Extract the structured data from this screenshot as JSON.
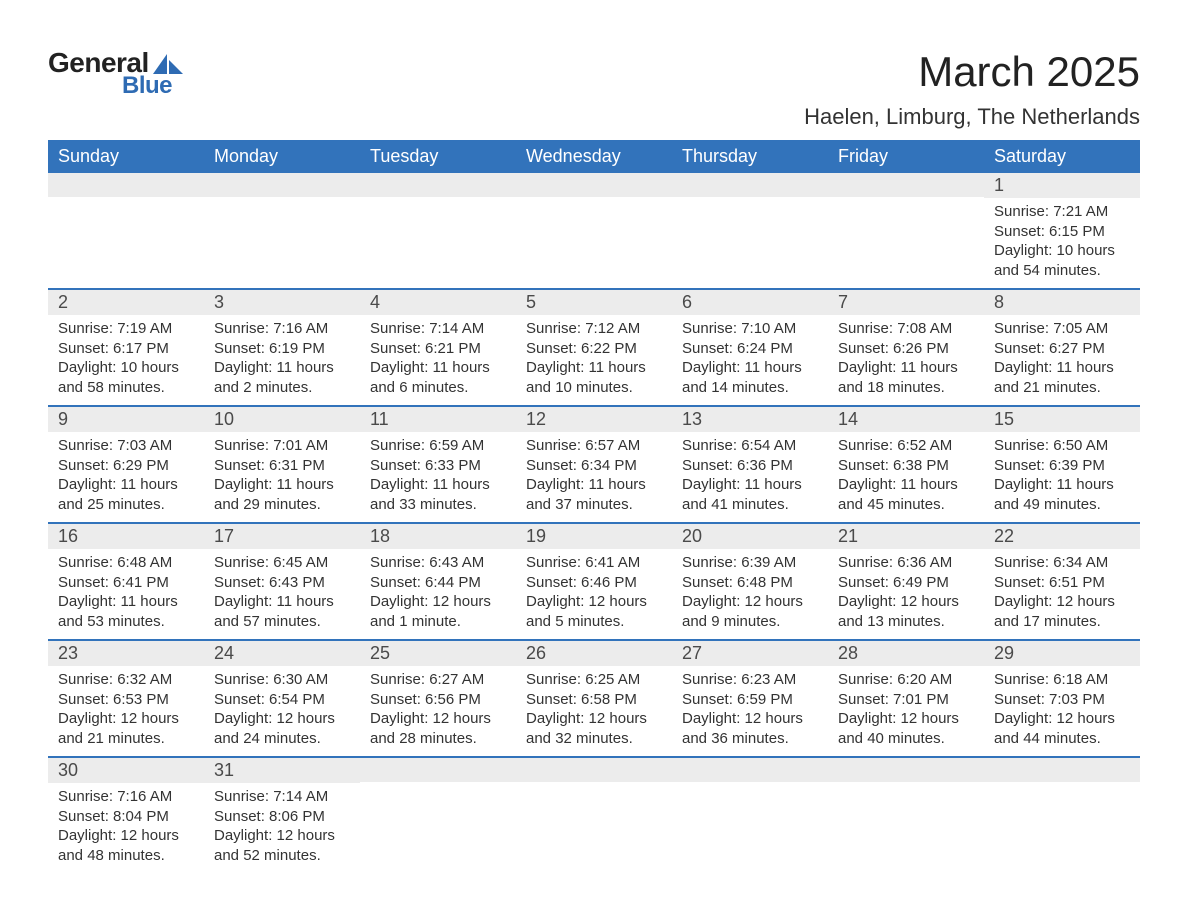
{
  "logo": {
    "text_general": "General",
    "text_blue": "Blue",
    "icon_color": "#2e6bb3"
  },
  "title": {
    "month": "March 2025",
    "location": "Haelen, Limburg, The Netherlands",
    "month_fontsize": 42,
    "location_fontsize": 22
  },
  "colors": {
    "header_bg": "#3273bb",
    "header_text": "#ffffff",
    "daynum_bg": "#ececec",
    "daynum_text": "#4a4a4a",
    "body_text": "#333333",
    "row_border": "#3273bb",
    "background": "#ffffff"
  },
  "typography": {
    "body_fontsize": 15,
    "header_fontsize": 18,
    "daynum_fontsize": 18,
    "font_family": "Arial"
  },
  "calendar": {
    "type": "table",
    "columns": [
      "Sunday",
      "Monday",
      "Tuesday",
      "Wednesday",
      "Thursday",
      "Friday",
      "Saturday"
    ],
    "weeks": [
      [
        null,
        null,
        null,
        null,
        null,
        null,
        {
          "n": "1",
          "sunrise": "Sunrise: 7:21 AM",
          "sunset": "Sunset: 6:15 PM",
          "daylight": "Daylight: 10 hours and 54 minutes."
        }
      ],
      [
        {
          "n": "2",
          "sunrise": "Sunrise: 7:19 AM",
          "sunset": "Sunset: 6:17 PM",
          "daylight": "Daylight: 10 hours and 58 minutes."
        },
        {
          "n": "3",
          "sunrise": "Sunrise: 7:16 AM",
          "sunset": "Sunset: 6:19 PM",
          "daylight": "Daylight: 11 hours and 2 minutes."
        },
        {
          "n": "4",
          "sunrise": "Sunrise: 7:14 AM",
          "sunset": "Sunset: 6:21 PM",
          "daylight": "Daylight: 11 hours and 6 minutes."
        },
        {
          "n": "5",
          "sunrise": "Sunrise: 7:12 AM",
          "sunset": "Sunset: 6:22 PM",
          "daylight": "Daylight: 11 hours and 10 minutes."
        },
        {
          "n": "6",
          "sunrise": "Sunrise: 7:10 AM",
          "sunset": "Sunset: 6:24 PM",
          "daylight": "Daylight: 11 hours and 14 minutes."
        },
        {
          "n": "7",
          "sunrise": "Sunrise: 7:08 AM",
          "sunset": "Sunset: 6:26 PM",
          "daylight": "Daylight: 11 hours and 18 minutes."
        },
        {
          "n": "8",
          "sunrise": "Sunrise: 7:05 AM",
          "sunset": "Sunset: 6:27 PM",
          "daylight": "Daylight: 11 hours and 21 minutes."
        }
      ],
      [
        {
          "n": "9",
          "sunrise": "Sunrise: 7:03 AM",
          "sunset": "Sunset: 6:29 PM",
          "daylight": "Daylight: 11 hours and 25 minutes."
        },
        {
          "n": "10",
          "sunrise": "Sunrise: 7:01 AM",
          "sunset": "Sunset: 6:31 PM",
          "daylight": "Daylight: 11 hours and 29 minutes."
        },
        {
          "n": "11",
          "sunrise": "Sunrise: 6:59 AM",
          "sunset": "Sunset: 6:33 PM",
          "daylight": "Daylight: 11 hours and 33 minutes."
        },
        {
          "n": "12",
          "sunrise": "Sunrise: 6:57 AM",
          "sunset": "Sunset: 6:34 PM",
          "daylight": "Daylight: 11 hours and 37 minutes."
        },
        {
          "n": "13",
          "sunrise": "Sunrise: 6:54 AM",
          "sunset": "Sunset: 6:36 PM",
          "daylight": "Daylight: 11 hours and 41 minutes."
        },
        {
          "n": "14",
          "sunrise": "Sunrise: 6:52 AM",
          "sunset": "Sunset: 6:38 PM",
          "daylight": "Daylight: 11 hours and 45 minutes."
        },
        {
          "n": "15",
          "sunrise": "Sunrise: 6:50 AM",
          "sunset": "Sunset: 6:39 PM",
          "daylight": "Daylight: 11 hours and 49 minutes."
        }
      ],
      [
        {
          "n": "16",
          "sunrise": "Sunrise: 6:48 AM",
          "sunset": "Sunset: 6:41 PM",
          "daylight": "Daylight: 11 hours and 53 minutes."
        },
        {
          "n": "17",
          "sunrise": "Sunrise: 6:45 AM",
          "sunset": "Sunset: 6:43 PM",
          "daylight": "Daylight: 11 hours and 57 minutes."
        },
        {
          "n": "18",
          "sunrise": "Sunrise: 6:43 AM",
          "sunset": "Sunset: 6:44 PM",
          "daylight": "Daylight: 12 hours and 1 minute."
        },
        {
          "n": "19",
          "sunrise": "Sunrise: 6:41 AM",
          "sunset": "Sunset: 6:46 PM",
          "daylight": "Daylight: 12 hours and 5 minutes."
        },
        {
          "n": "20",
          "sunrise": "Sunrise: 6:39 AM",
          "sunset": "Sunset: 6:48 PM",
          "daylight": "Daylight: 12 hours and 9 minutes."
        },
        {
          "n": "21",
          "sunrise": "Sunrise: 6:36 AM",
          "sunset": "Sunset: 6:49 PM",
          "daylight": "Daylight: 12 hours and 13 minutes."
        },
        {
          "n": "22",
          "sunrise": "Sunrise: 6:34 AM",
          "sunset": "Sunset: 6:51 PM",
          "daylight": "Daylight: 12 hours and 17 minutes."
        }
      ],
      [
        {
          "n": "23",
          "sunrise": "Sunrise: 6:32 AM",
          "sunset": "Sunset: 6:53 PM",
          "daylight": "Daylight: 12 hours and 21 minutes."
        },
        {
          "n": "24",
          "sunrise": "Sunrise: 6:30 AM",
          "sunset": "Sunset: 6:54 PM",
          "daylight": "Daylight: 12 hours and 24 minutes."
        },
        {
          "n": "25",
          "sunrise": "Sunrise: 6:27 AM",
          "sunset": "Sunset: 6:56 PM",
          "daylight": "Daylight: 12 hours and 28 minutes."
        },
        {
          "n": "26",
          "sunrise": "Sunrise: 6:25 AM",
          "sunset": "Sunset: 6:58 PM",
          "daylight": "Daylight: 12 hours and 32 minutes."
        },
        {
          "n": "27",
          "sunrise": "Sunrise: 6:23 AM",
          "sunset": "Sunset: 6:59 PM",
          "daylight": "Daylight: 12 hours and 36 minutes."
        },
        {
          "n": "28",
          "sunrise": "Sunrise: 6:20 AM",
          "sunset": "Sunset: 7:01 PM",
          "daylight": "Daylight: 12 hours and 40 minutes."
        },
        {
          "n": "29",
          "sunrise": "Sunrise: 6:18 AM",
          "sunset": "Sunset: 7:03 PM",
          "daylight": "Daylight: 12 hours and 44 minutes."
        }
      ],
      [
        {
          "n": "30",
          "sunrise": "Sunrise: 7:16 AM",
          "sunset": "Sunset: 8:04 PM",
          "daylight": "Daylight: 12 hours and 48 minutes."
        },
        {
          "n": "31",
          "sunrise": "Sunrise: 7:14 AM",
          "sunset": "Sunset: 8:06 PM",
          "daylight": "Daylight: 12 hours and 52 minutes."
        },
        null,
        null,
        null,
        null,
        null
      ]
    ]
  }
}
